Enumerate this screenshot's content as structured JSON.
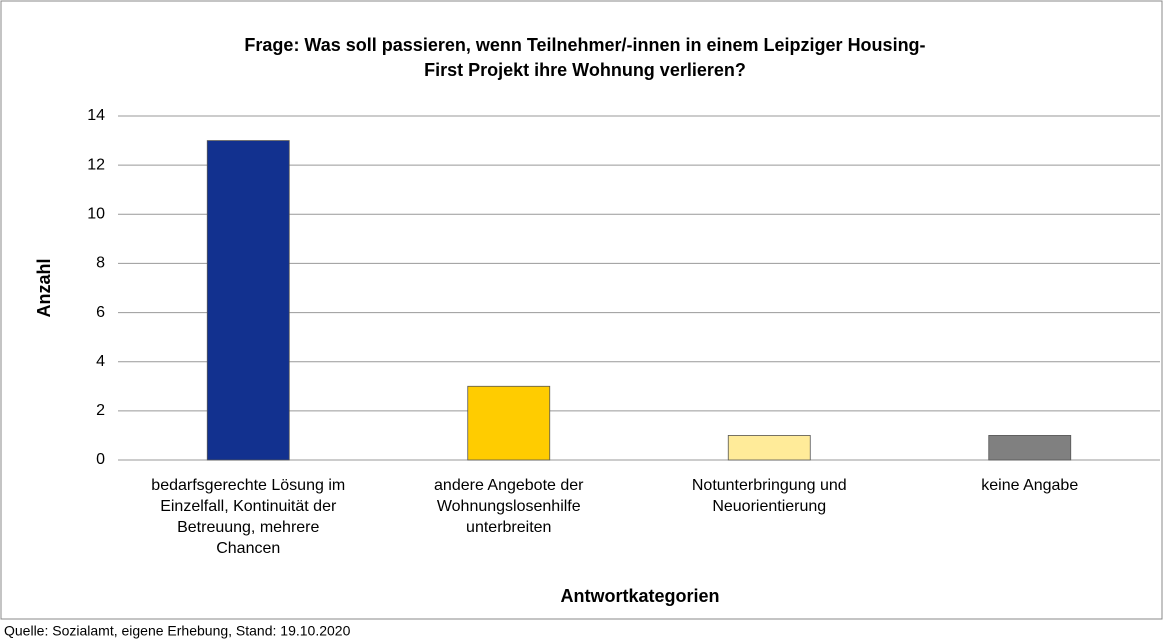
{
  "chart_data": {
    "type": "bar",
    "title": "Frage: Was soll passieren, wenn Teilnehmer/-innen in einem Leipziger Housing-First Projekt ihre Wohnung verlieren?",
    "categories": [
      "bedarfsgerechte Lösung im Einzelfall, Kontinuität der Betreuung, mehrere Chancen",
      "andere Angebote der Wohnungslosenhilfe unterbreiten",
      "Notunterbringung und Neuorientierung",
      "keine Angabe"
    ],
    "values": [
      13,
      3,
      1,
      1
    ],
    "colors": [
      "#12318f",
      "#ffcc00",
      "#ffeb99",
      "#808080"
    ],
    "xlabel": "Antwortkategorien",
    "ylabel": "Anzahl",
    "ylim": [
      0,
      14
    ],
    "yticks": [
      0,
      2,
      4,
      6,
      8,
      10,
      12,
      14
    ],
    "grid": true,
    "source": "Quelle: Sozialamt, eigene Erhebung, Stand: 19.10.2020"
  }
}
